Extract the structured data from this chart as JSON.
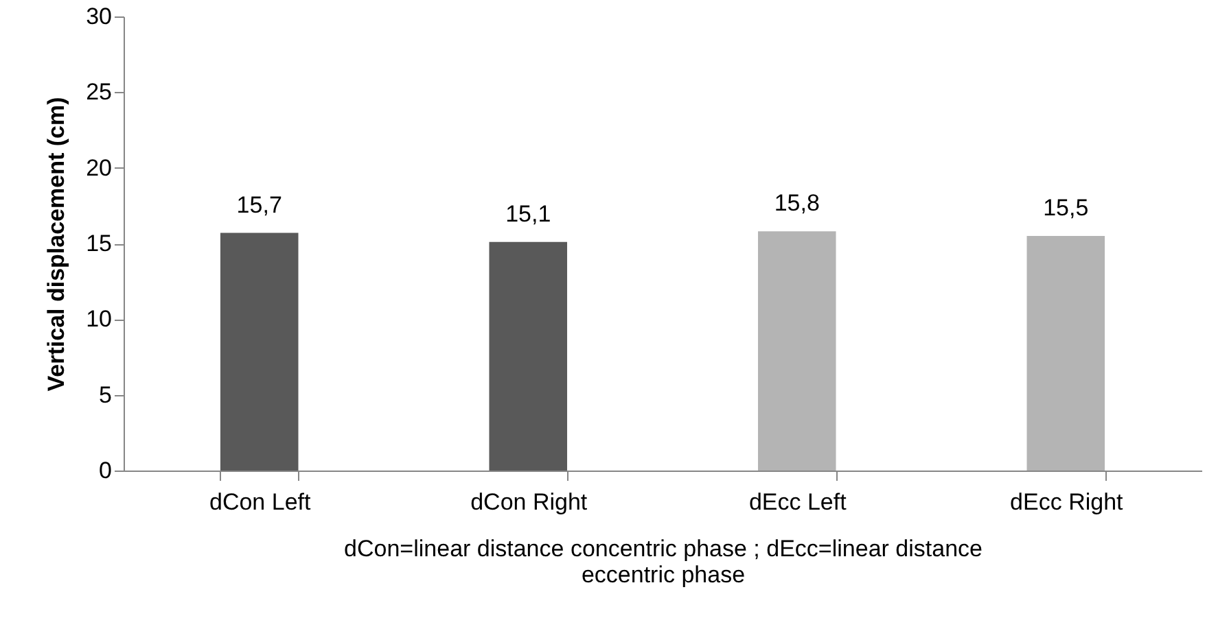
{
  "chart_data": {
    "type": "bar",
    "ylabel": "Vertical displacement (cm)",
    "xlabel": "dCon=linear distance concentric phase ; dEcc=linear distance eccentric phase",
    "categories": [
      "dCon Left",
      "dCon Right",
      "dEcc Left",
      "dEcc Right"
    ],
    "values": [
      15.7,
      15.1,
      15.8,
      15.5
    ],
    "colors": [
      "#595959",
      "#595959",
      "#b4b4b4",
      "#b4b4b4"
    ],
    "value_labels": [
      "15,7",
      "15,1",
      "15,8",
      "15,5"
    ],
    "ylim": [
      0,
      30
    ],
    "yticks": [
      0,
      5,
      10,
      15,
      20,
      25,
      30
    ],
    "grid": false
  }
}
